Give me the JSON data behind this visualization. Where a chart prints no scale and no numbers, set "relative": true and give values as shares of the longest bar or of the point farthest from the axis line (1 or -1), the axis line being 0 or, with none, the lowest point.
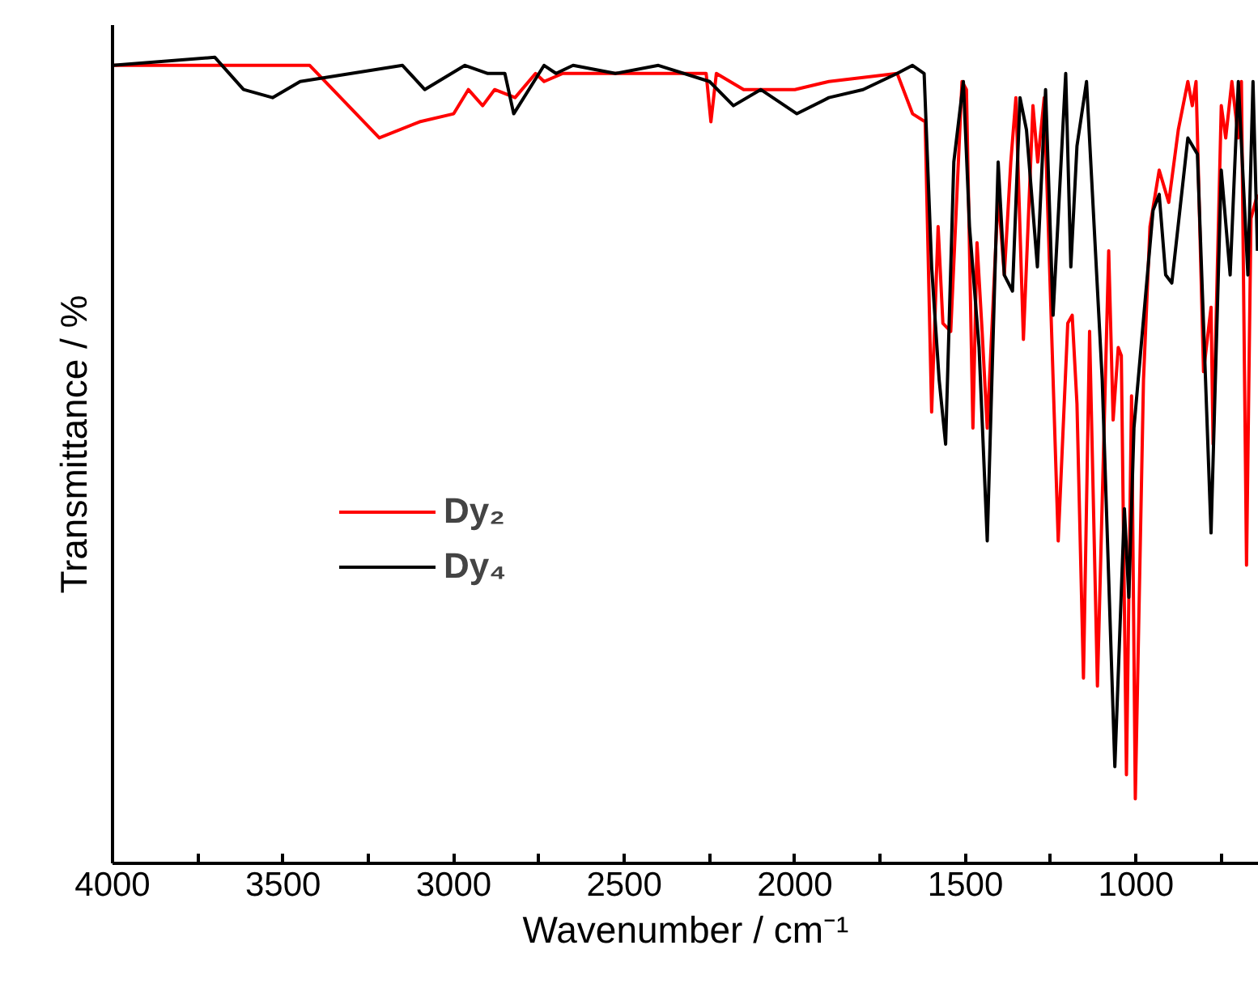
{
  "chart_data": {
    "type": "line",
    "relative": true,
    "xlabel": "Wavenumber / cm⁻¹",
    "ylabel": "Transmittance / %",
    "xlim": [
      4000,
      640
    ],
    "xticks": [
      4000,
      {
        "value": 3750,
        "label": null
      },
      3500,
      {
        "value": 3250,
        "label": null
      },
      3000,
      {
        "value": 2750,
        "label": null
      },
      2500,
      {
        "value": 2250,
        "label": null
      },
      2000,
      {
        "value": 1750,
        "label": null
      },
      1500,
      {
        "value": 1250,
        "label": null
      },
      1000,
      {
        "value": 750,
        "label": null
      }
    ],
    "tick_labels": "x",
    "grid": false,
    "legend": "left",
    "marker": "none",
    "line_style": "solid",
    "series": [
      {
        "name": "Dy₂",
        "color": "#ff0000",
        "x": [
          4000,
          3700,
          3600,
          3422,
          3218,
          3100,
          3000,
          2957,
          2915,
          2880,
          2820,
          2760,
          2735,
          2680,
          2600,
          2526,
          2260,
          2246,
          2230,
          2150,
          2000,
          1900,
          1700,
          1655,
          1618,
          1599,
          1580,
          1566,
          1543,
          1510,
          1497,
          1478,
          1466,
          1451,
          1436,
          1404,
          1386,
          1367,
          1352,
          1330,
          1302,
          1288,
          1269,
          1228,
          1200,
          1187,
          1173,
          1154,
          1136,
          1113,
          1080,
          1067,
          1052,
          1043,
          1028,
          1013,
          1002,
          978,
          959,
          932,
          904,
          876,
          848,
          835,
          824,
          802,
          780,
          774,
          750,
          737,
          719,
          700,
          691,
          676,
          663,
          644
        ],
        "values": [
          0.99,
          0.99,
          0.99,
          0.99,
          0.9,
          0.92,
          0.93,
          0.96,
          0.94,
          0.96,
          0.95,
          0.98,
          0.97,
          0.98,
          0.98,
          0.98,
          0.98,
          0.92,
          0.98,
          0.96,
          0.96,
          0.97,
          0.98,
          0.93,
          0.92,
          0.56,
          0.79,
          0.67,
          0.66,
          0.97,
          0.96,
          0.54,
          0.77,
          0.66,
          0.54,
          0.83,
          0.73,
          0.87,
          0.95,
          0.65,
          0.94,
          0.87,
          0.95,
          0.4,
          0.67,
          0.68,
          0.57,
          0.23,
          0.66,
          0.22,
          0.76,
          0.55,
          0.64,
          0.63,
          0.11,
          0.58,
          0.08,
          0.6,
          0.79,
          0.86,
          0.82,
          0.91,
          0.97,
          0.94,
          0.97,
          0.61,
          0.69,
          0.52,
          0.94,
          0.9,
          0.97,
          0.9,
          0.97,
          0.37,
          0.8,
          0.83
        ]
      },
      {
        "name": "Dy₄",
        "color": "#000000",
        "x": [
          4000,
          3700,
          3616,
          3531,
          3450,
          3300,
          3150,
          3085,
          2967,
          2900,
          2850,
          2824,
          2735,
          2700,
          2650,
          2526,
          2400,
          2250,
          2180,
          2100,
          1994,
          1900,
          1800,
          1700,
          1655,
          1621,
          1599,
          1577,
          1558,
          1534,
          1506,
          1488,
          1460,
          1436,
          1404,
          1386,
          1362,
          1340,
          1321,
          1289,
          1265,
          1243,
          1206,
          1191,
          1173,
          1145,
          1099,
          1062,
          1034,
          1021,
          1006,
          950,
          932,
          913,
          895,
          848,
          820,
          780,
          750,
          724,
          700,
          672,
          657,
          644
        ],
        "values": [
          0.99,
          1.0,
          0.96,
          0.95,
          0.97,
          0.98,
          0.99,
          0.96,
          0.99,
          0.98,
          0.98,
          0.93,
          0.99,
          0.98,
          0.99,
          0.98,
          0.99,
          0.97,
          0.94,
          0.96,
          0.93,
          0.95,
          0.96,
          0.98,
          0.99,
          0.98,
          0.74,
          0.6,
          0.52,
          0.87,
          0.97,
          0.79,
          0.64,
          0.4,
          0.87,
          0.73,
          0.71,
          0.95,
          0.91,
          0.74,
          0.96,
          0.68,
          0.98,
          0.74,
          0.89,
          0.97,
          0.6,
          0.12,
          0.44,
          0.33,
          0.54,
          0.81,
          0.83,
          0.73,
          0.72,
          0.9,
          0.88,
          0.41,
          0.86,
          0.73,
          0.97,
          0.73,
          0.97,
          0.76
        ]
      }
    ]
  }
}
